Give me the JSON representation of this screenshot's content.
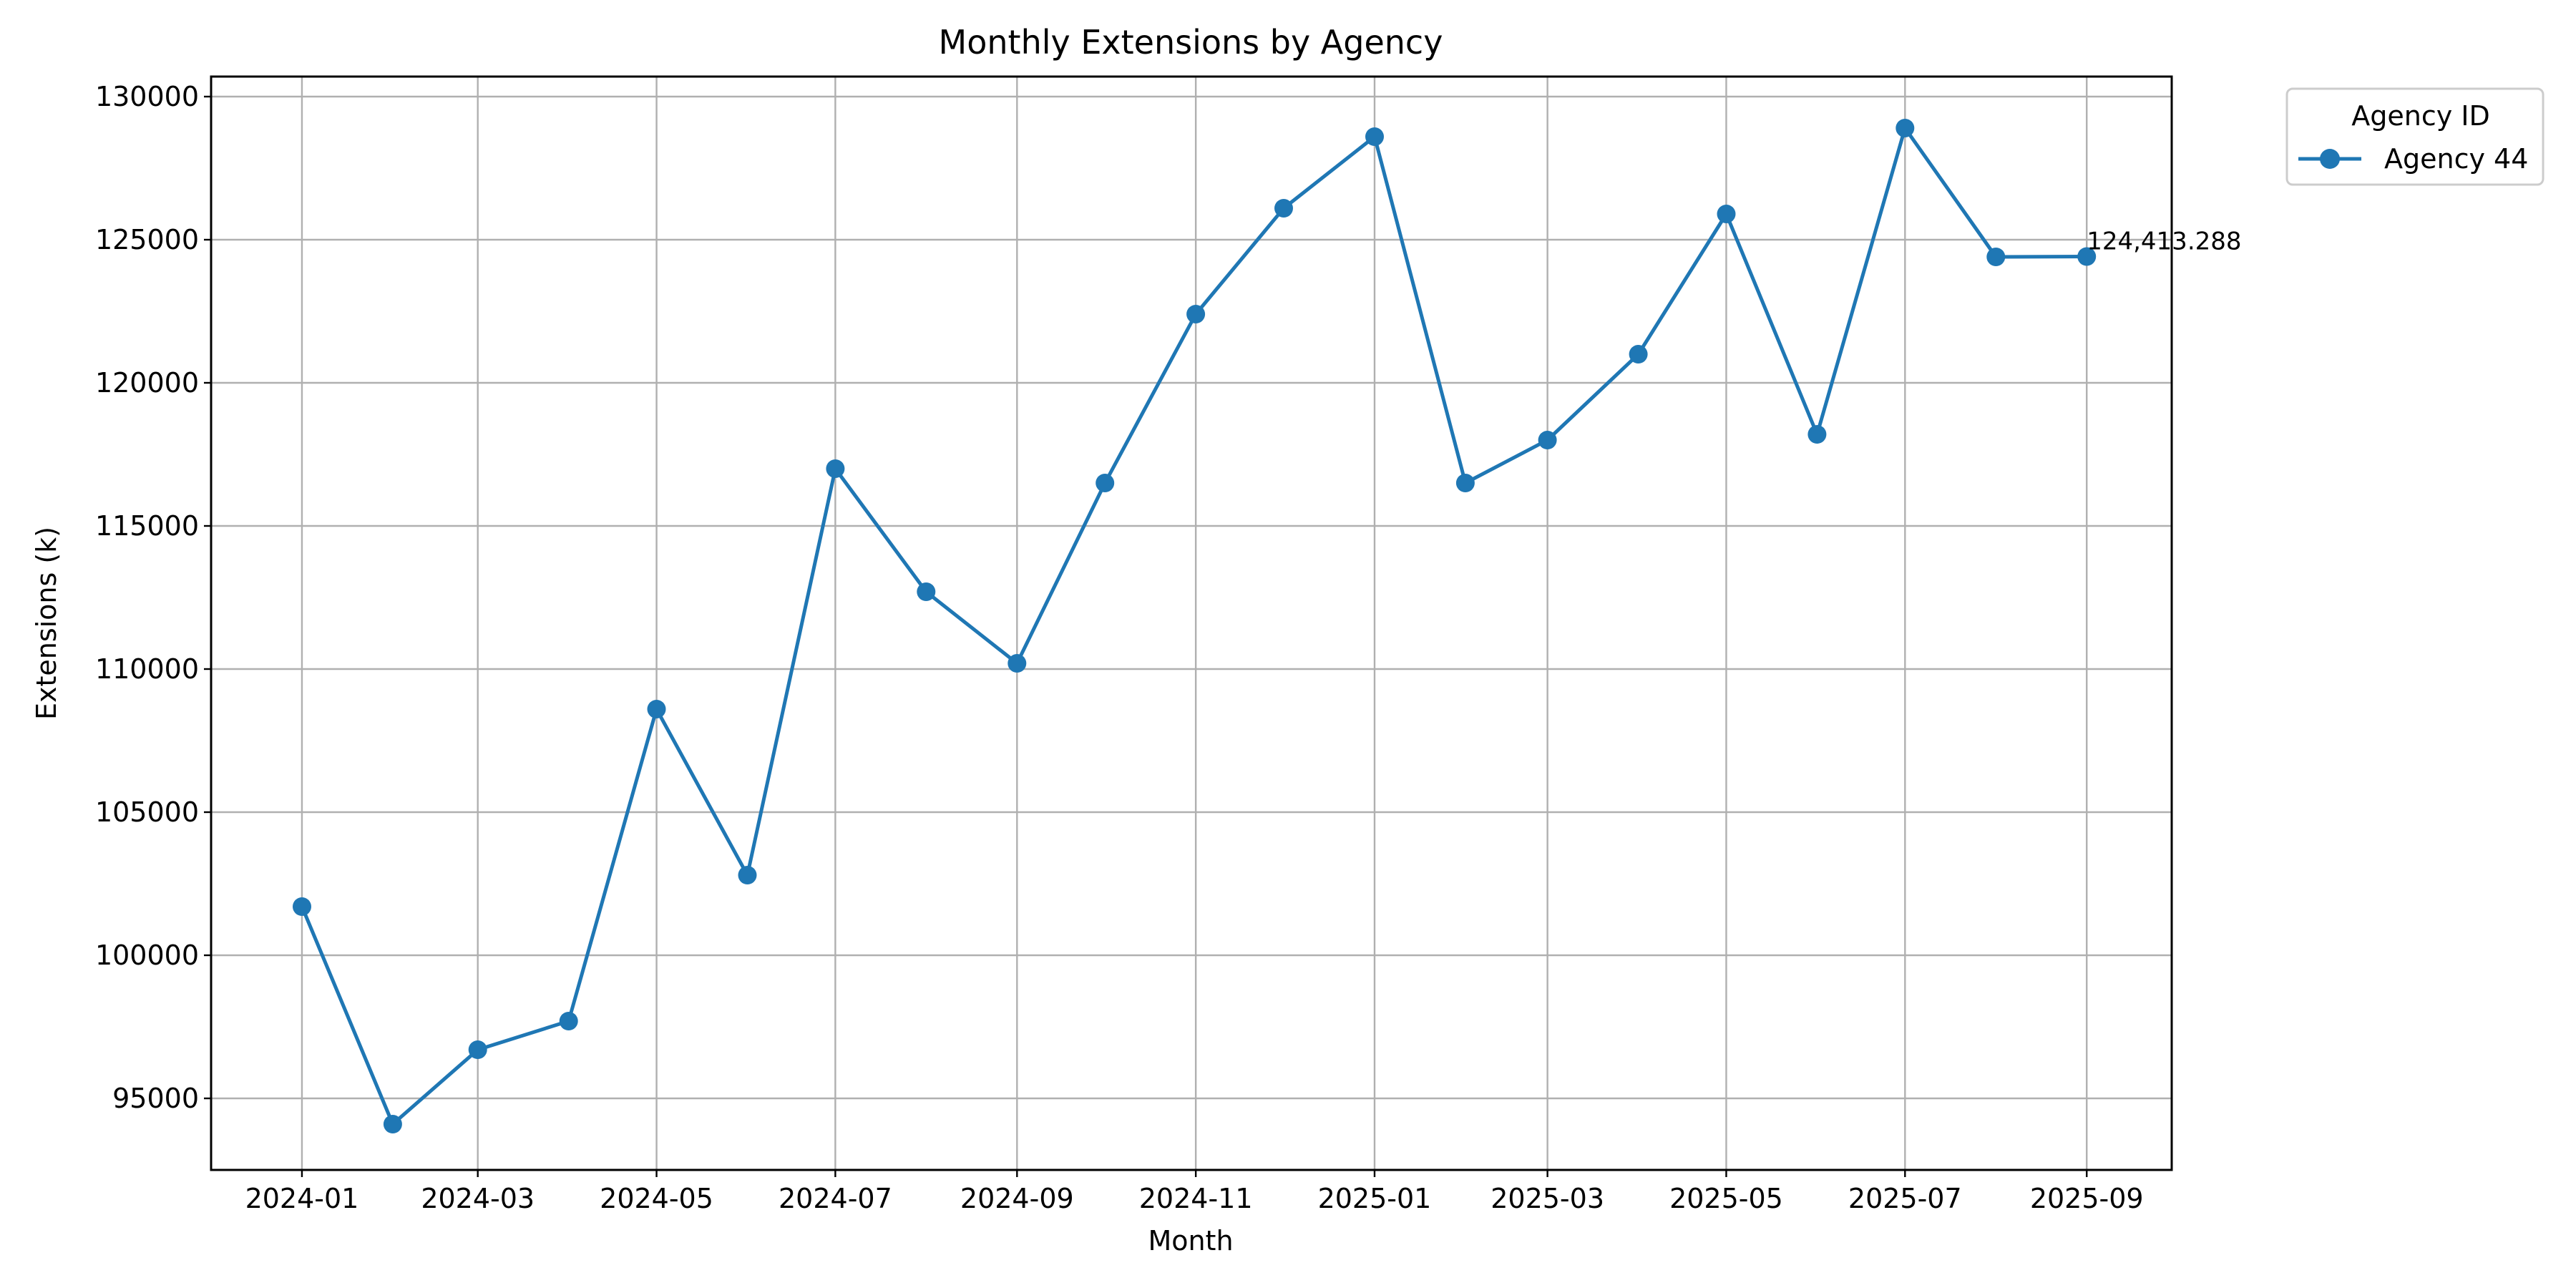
{
  "chart_data": {
    "type": "line",
    "title": "Monthly Extensions by Agency",
    "xlabel": "Month",
    "ylabel": "Extensions (k)",
    "x_ticks": [
      "2024-01",
      "2024-03",
      "2024-05",
      "2024-07",
      "2024-09",
      "2024-11",
      "2025-01",
      "2025-03",
      "2025-05",
      "2025-07",
      "2025-09"
    ],
    "y_ticks": [
      95000,
      100000,
      105000,
      110000,
      115000,
      120000,
      125000,
      130000
    ],
    "ylim": [
      92500,
      130700
    ],
    "xlim": [
      "2023-12-01",
      "2025-09-30"
    ],
    "grid": true,
    "legend": {
      "title": "Agency ID",
      "placement": "outside-top-right"
    },
    "series": [
      {
        "name": "Agency 44",
        "color": "#1f77b4",
        "marker": "circle",
        "x": [
          "2024-01",
          "2024-02",
          "2024-03",
          "2024-04",
          "2024-05",
          "2024-06",
          "2024-07",
          "2024-08",
          "2024-09",
          "2024-10",
          "2024-11",
          "2024-12",
          "2025-01",
          "2025-02",
          "2025-03",
          "2025-04",
          "2025-05",
          "2025-06",
          "2025-07",
          "2025-08",
          "2025-09"
        ],
        "values": [
          101700,
          94100,
          96700,
          97700,
          108600,
          102800,
          117000,
          112700,
          110200,
          116500,
          122400,
          126100,
          128600,
          116500,
          118000,
          121000,
          125900,
          118200,
          128900,
          124400,
          124413.288
        ]
      }
    ],
    "annotations": [
      {
        "text": "124,413.288",
        "series": 0,
        "index": 20
      }
    ]
  }
}
